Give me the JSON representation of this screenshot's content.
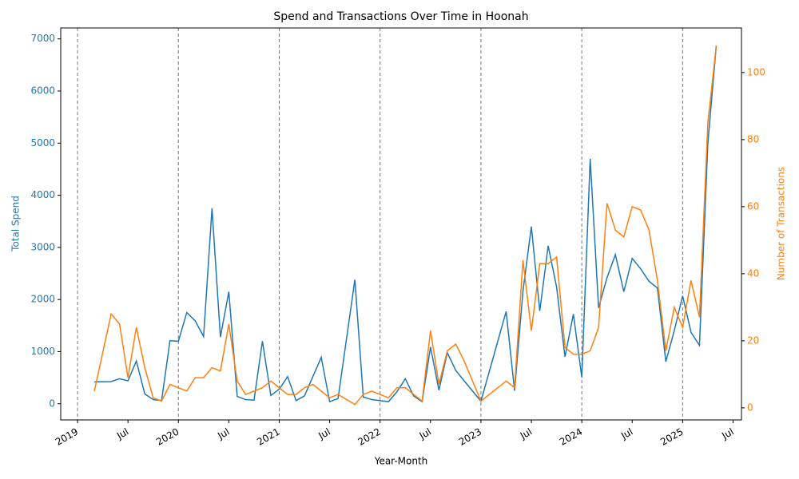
{
  "chart_data": {
    "type": "line",
    "title": "Spend and Transactions Over Time in Hoonah",
    "x_label": "Year-Month",
    "y_label": "Total Spend",
    "y2_label": "Number of Transactions",
    "x": [
      "2019-03",
      "2019-05",
      "2019-06",
      "2019-07",
      "2019-08",
      "2019-09",
      "2019-10",
      "2019-11",
      "2019-12",
      "2020-01",
      "2020-02",
      "2020-03",
      "2020-04",
      "2020-05",
      "2020-06",
      "2020-07",
      "2020-08",
      "2020-09",
      "2020-10",
      "2020-11",
      "2020-12",
      "2021-01",
      "2021-02",
      "2021-03",
      "2021-04",
      "2021-05",
      "2021-06",
      "2021-07",
      "2021-08",
      "2021-10",
      "2021-11",
      "2021-12",
      "2022-02",
      "2022-03",
      "2022-04",
      "2022-05",
      "2022-06",
      "2022-07",
      "2022-08",
      "2022-09",
      "2022-10",
      "2022-11",
      "2023-01",
      "2023-04",
      "2023-05",
      "2023-06",
      "2023-07",
      "2023-08",
      "2023-09",
      "2023-10",
      "2023-11",
      "2023-12",
      "2024-01",
      "2024-02",
      "2024-03",
      "2024-04",
      "2024-05",
      "2024-06",
      "2024-07",
      "2024-08",
      "2024-09",
      "2024-10",
      "2024-11",
      "2024-12",
      "2025-01",
      "2025-02",
      "2025-03",
      "2025-04",
      "2025-05"
    ],
    "series": [
      {
        "name": "Total Spend",
        "color": "#1f77b4",
        "axis": "y",
        "values": [
          420,
          425,
          480,
          440,
          820,
          190,
          80,
          60,
          1210,
          1200,
          1750,
          1590,
          1290,
          3750,
          1280,
          2150,
          140,
          80,
          70,
          1200,
          160,
          280,
          520,
          60,
          150,
          520,
          890,
          40,
          100,
          2380,
          130,
          80,
          40,
          230,
          480,
          150,
          40,
          1090,
          260,
          980,
          640,
          440,
          50,
          1770,
          250,
          2160,
          3400,
          1780,
          3030,
          2240,
          900,
          1720,
          510,
          4700,
          1840,
          2420,
          2860,
          2150,
          2790,
          2590,
          2350,
          2220,
          810,
          1400,
          2070,
          1370,
          1120,
          5000,
          6870
        ]
      },
      {
        "name": "Number of Transactions",
        "color": "#ff7f0e",
        "axis": "y2",
        "values": [
          5,
          28,
          25,
          9,
          24,
          12,
          3,
          2,
          7,
          6,
          5,
          9,
          9,
          12,
          11,
          25,
          8,
          4,
          5,
          6,
          8,
          6,
          4,
          4,
          6,
          7,
          5,
          3,
          4,
          1,
          4,
          5,
          3,
          6,
          6,
          4,
          2,
          23,
          7,
          17,
          19,
          14,
          2,
          8,
          6,
          44,
          23,
          43,
          43,
          45,
          18,
          16,
          16,
          17,
          24,
          61,
          53,
          51,
          60,
          59,
          53,
          38,
          17,
          30,
          24,
          38,
          27,
          85,
          108
        ]
      }
    ],
    "xlim": [
      "2018-11",
      "2025-08"
    ],
    "xticks": [
      {
        "value": "2019-01",
        "label": "2019"
      },
      {
        "value": "2019-07",
        "label": "Jul"
      },
      {
        "value": "2020-01",
        "label": "2020"
      },
      {
        "value": "2020-07",
        "label": "Jul"
      },
      {
        "value": "2021-01",
        "label": "2021"
      },
      {
        "value": "2021-07",
        "label": "Jul"
      },
      {
        "value": "2022-01",
        "label": "2022"
      },
      {
        "value": "2022-07",
        "label": "Jul"
      },
      {
        "value": "2023-01",
        "label": "2023"
      },
      {
        "value": "2023-07",
        "label": "Jul"
      },
      {
        "value": "2024-01",
        "label": "2024"
      },
      {
        "value": "2024-07",
        "label": "Jul"
      },
      {
        "value": "2025-01",
        "label": "2025"
      },
      {
        "value": "2025-07",
        "label": "Jul"
      }
    ],
    "vlines": [
      "2019-01",
      "2020-01",
      "2021-01",
      "2022-01",
      "2023-01",
      "2024-01",
      "2025-01"
    ],
    "ylim": [
      -310,
      7210
    ],
    "yticks": [
      0,
      1000,
      2000,
      3000,
      4000,
      5000,
      6000,
      7000
    ],
    "y2lim": [
      -3.6,
      113.3
    ],
    "y2ticks": [
      0,
      20,
      40,
      60,
      80,
      100
    ]
  }
}
